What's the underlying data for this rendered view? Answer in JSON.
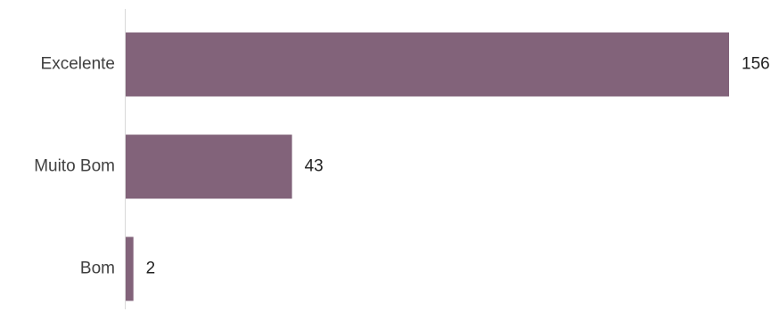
{
  "chart_data": {
    "type": "bar",
    "orientation": "horizontal",
    "title": "",
    "xlabel": "",
    "ylabel": "",
    "categories": [
      "Excelente",
      "Muito Bom",
      "Bom"
    ],
    "values": [
      156,
      43,
      2
    ],
    "data_labels": [
      "156",
      "43",
      "2"
    ],
    "xlim": [
      0,
      156
    ],
    "grid": false,
    "legend": "none",
    "bar_color": "#82637a",
    "axis_color": "#d9d9d9",
    "label_color": "#404040",
    "value_label_color": "#222222"
  }
}
